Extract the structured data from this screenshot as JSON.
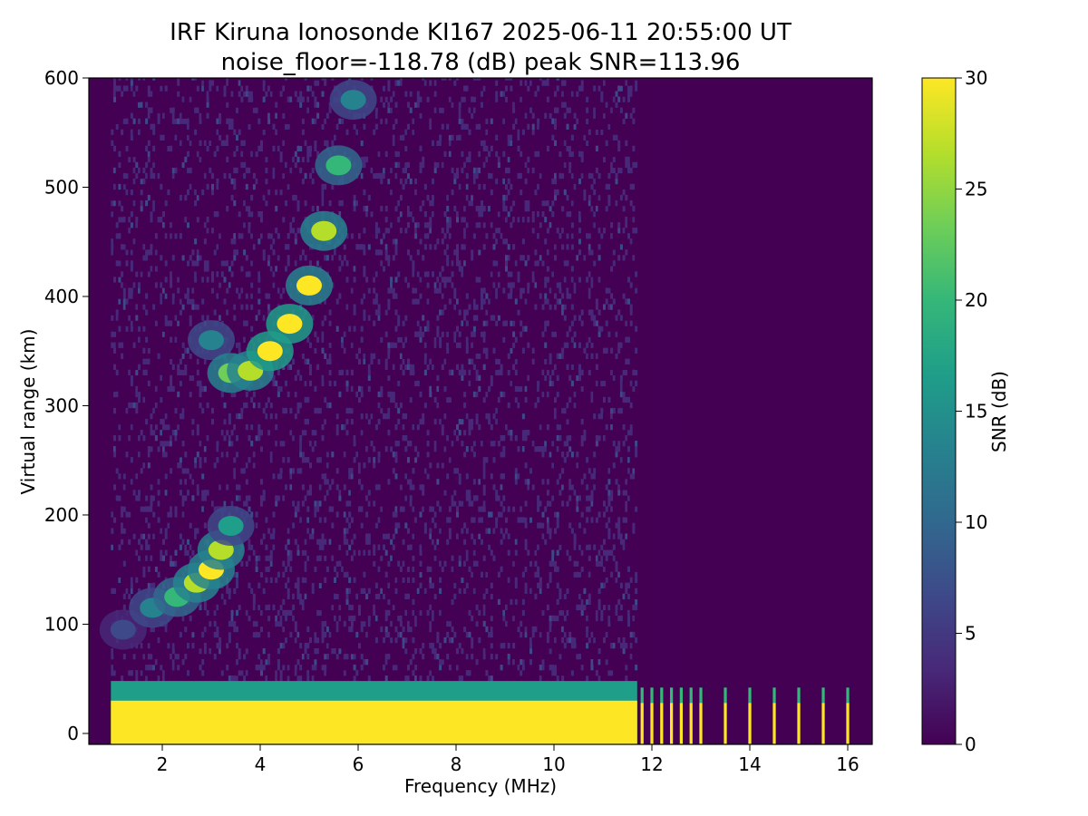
{
  "figure": {
    "title_line1": "IRF Kiruna Ionosonde KI167 2025-06-11 20:55:00  UT",
    "title_line2": "noise_floor=-118.78 (dB) peak SNR=113.96"
  },
  "chart_data": {
    "type": "heatmap",
    "title": "IRF Kiruna Ionosonde KI167 2025-06-11 20:55:00  UT",
    "subtitle": "noise_floor=-118.78 (dB) peak SNR=113.96",
    "xlabel": "Frequency (MHz)",
    "ylabel": "Virtual range (km)",
    "xlim": [
      0.5,
      16.5
    ],
    "ylim": [
      -10,
      600
    ],
    "x_ticks": [
      2,
      4,
      6,
      8,
      10,
      12,
      14,
      16
    ],
    "x_tick_labels": [
      "2",
      "4",
      "6",
      "8",
      "10",
      "12",
      "14",
      "16"
    ],
    "y_ticks": [
      0,
      100,
      200,
      300,
      400,
      500,
      600
    ],
    "y_tick_labels": [
      "0",
      "100",
      "200",
      "300",
      "400",
      "500",
      "600"
    ],
    "colorbar": {
      "label": "SNR (dB)",
      "range": [
        0,
        30
      ],
      "ticks": [
        0,
        5,
        10,
        15,
        20,
        25,
        30
      ],
      "tick_labels": [
        "0",
        "5",
        "10",
        "15",
        "20",
        "25",
        "30"
      ],
      "colormap": "viridis",
      "colors": [
        "#440154",
        "#482878",
        "#3e4989",
        "#31688e",
        "#26828e",
        "#1f9e89",
        "#35b779",
        "#6ece58",
        "#b5de2b",
        "#fde725"
      ]
    },
    "sweep_range_mhz": [
      0.95,
      16.3
    ],
    "continuous_sweep_end_mhz": 11.7,
    "discrete_frequencies_mhz": [
      11.8,
      12.0,
      12.2,
      12.4,
      12.6,
      12.8,
      13.0,
      13.5,
      14.0,
      14.5,
      15.0,
      15.5,
      16.0
    ],
    "echo_traces": [
      {
        "name": "",
        "points": [
          {
            "f": 1.2,
            "h": 95,
            "snr": 6
          },
          {
            "f": 1.8,
            "h": 115,
            "snr": 14
          },
          {
            "f": 2.3,
            "h": 125,
            "snr": 20
          },
          {
            "f": 2.7,
            "h": 138,
            "snr": 24
          },
          {
            "f": 3.0,
            "h": 150,
            "snr": 27
          },
          {
            "f": 3.2,
            "h": 168,
            "snr": 26
          },
          {
            "f": 3.4,
            "h": 190,
            "snr": 16
          }
        ]
      },
      {
        "name": "",
        "points": [
          {
            "f": 3.0,
            "h": 360,
            "snr": 14
          },
          {
            "f": 3.4,
            "h": 330,
            "snr": 22
          },
          {
            "f": 3.8,
            "h": 332,
            "snr": 24
          },
          {
            "f": 4.2,
            "h": 350,
            "snr": 28
          },
          {
            "f": 4.6,
            "h": 375,
            "snr": 29
          },
          {
            "f": 5.0,
            "h": 410,
            "snr": 27
          },
          {
            "f": 5.3,
            "h": 460,
            "snr": 24
          },
          {
            "f": 5.6,
            "h": 520,
            "snr": 20
          },
          {
            "f": 5.9,
            "h": 580,
            "snr": 14
          }
        ]
      }
    ],
    "ground_band": {
      "h_range": [
        0,
        48
      ],
      "snr": 30
    }
  }
}
